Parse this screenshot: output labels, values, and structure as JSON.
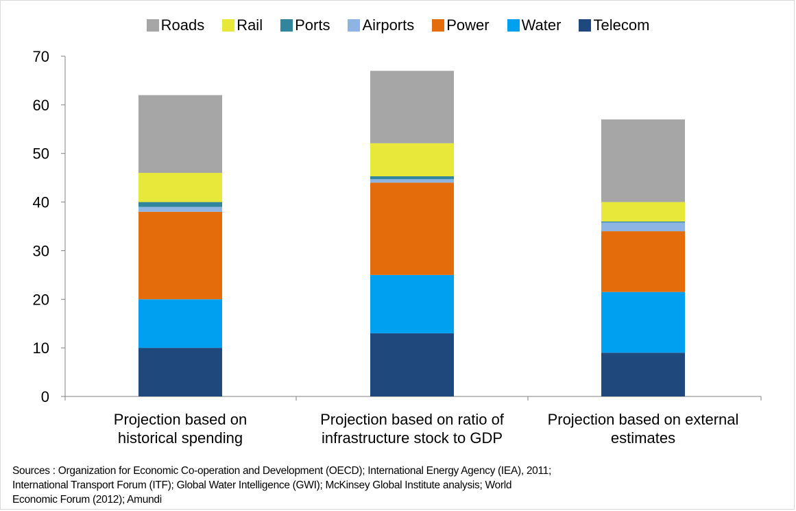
{
  "chart_data": {
    "type": "bar",
    "stacked": true,
    "categories": [
      [
        "Projection based on",
        "historical spending"
      ],
      [
        "Projection based on ratio of",
        "infrastructure stock to GDP"
      ],
      [
        "Projection based on external",
        "estimates"
      ]
    ],
    "series": [
      {
        "name": "Telecom",
        "color": "#1f497d",
        "values": [
          10,
          13,
          9
        ]
      },
      {
        "name": "Water",
        "color": "#00a0f0",
        "values": [
          10,
          12,
          12.5
        ]
      },
      {
        "name": "Power",
        "color": "#e46c0a",
        "values": [
          18,
          19,
          12.5
        ]
      },
      {
        "name": "Airports",
        "color": "#8db4e2",
        "values": [
          1,
          0.7,
          1.8
        ]
      },
      {
        "name": "Ports",
        "color": "#31859c",
        "values": [
          1,
          0.6,
          0.2
        ]
      },
      {
        "name": "Rail",
        "color": "#e8e83a",
        "values": [
          6,
          6.8,
          4
        ]
      },
      {
        "name": "Roads",
        "color": "#a6a6a6",
        "values": [
          16,
          14.9,
          17
        ]
      }
    ],
    "ylim": [
      0,
      70
    ],
    "yticks": [
      0,
      10,
      20,
      30,
      40,
      50,
      60,
      70
    ],
    "legend_position": "top",
    "legend_order": [
      "Roads",
      "Rail",
      "Ports",
      "Airports",
      "Power",
      "Water",
      "Telecom"
    ],
    "grid": false
  },
  "sources": [
    "Sources : Organization for Economic Co-operation and Development (OECD); International  Energy Agency (IEA), 2011;",
    "International Transport Forum (ITF); Global Water Intelligence (GWI); McKinsey Global Institute analysis; World",
    "Economic Forum (2012); Amundi"
  ]
}
